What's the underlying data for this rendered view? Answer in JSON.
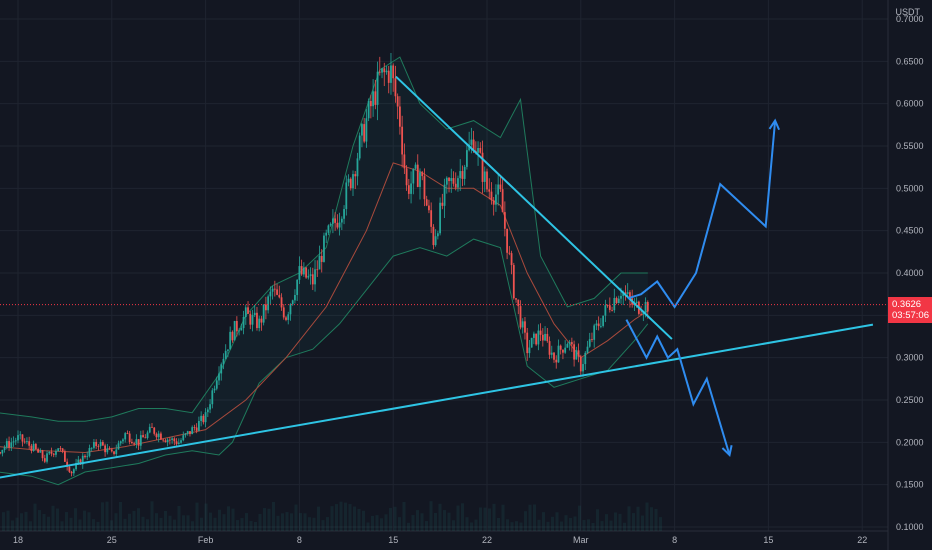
{
  "chart_data": {
    "type": "candlestick",
    "quote_currency": "USDT",
    "ylim": [
      0.1,
      0.7
    ],
    "y_ticks": [
      "0.1000",
      "0.1500",
      "0.2000",
      "0.2500",
      "0.3000",
      "0.3500",
      "0.4000",
      "0.4500",
      "0.5000",
      "0.5500",
      "0.6000",
      "0.6500",
      "0.7000"
    ],
    "x_ticks": [
      {
        "label": "18",
        "day": 0
      },
      {
        "label": "25",
        "day": 7
      },
      {
        "label": "Feb",
        "day": 14
      },
      {
        "label": "8",
        "day": 21
      },
      {
        "label": "15",
        "day": 28
      },
      {
        "label": "22",
        "day": 35
      },
      {
        "label": "Mar",
        "day": 42
      },
      {
        "label": "8",
        "day": 49
      },
      {
        "label": "15",
        "day": 56
      },
      {
        "label": "22",
        "day": 63
      }
    ],
    "current_price": {
      "value": 0.3626,
      "label": "0.3626",
      "countdown": "03:57:06"
    },
    "close_path": [
      [
        -1.5,
        0.19
      ],
      [
        0,
        0.205
      ],
      [
        1,
        0.195
      ],
      [
        2,
        0.18
      ],
      [
        3,
        0.195
      ],
      [
        4,
        0.165
      ],
      [
        5,
        0.185
      ],
      [
        6,
        0.2
      ],
      [
        7,
        0.185
      ],
      [
        8,
        0.21
      ],
      [
        9,
        0.2
      ],
      [
        10,
        0.215
      ],
      [
        11,
        0.205
      ],
      [
        12,
        0.2
      ],
      [
        13,
        0.215
      ],
      [
        14,
        0.23
      ],
      [
        15,
        0.29
      ],
      [
        16,
        0.33
      ],
      [
        17,
        0.35
      ],
      [
        18,
        0.34
      ],
      [
        19,
        0.38
      ],
      [
        20,
        0.35
      ],
      [
        21,
        0.4
      ],
      [
        22,
        0.39
      ],
      [
        23,
        0.44
      ],
      [
        24,
        0.47
      ],
      [
        25,
        0.52
      ],
      [
        26,
        0.58
      ],
      [
        27,
        0.63
      ],
      [
        27.8,
        0.64
      ],
      [
        28.5,
        0.58
      ],
      [
        29,
        0.5
      ],
      [
        30,
        0.52
      ],
      [
        31,
        0.44
      ],
      [
        32,
        0.5
      ],
      [
        33,
        0.52
      ],
      [
        34,
        0.56
      ],
      [
        35,
        0.5
      ],
      [
        36,
        0.49
      ],
      [
        37,
        0.38
      ],
      [
        38,
        0.31
      ],
      [
        39,
        0.33
      ],
      [
        40,
        0.3
      ],
      [
        41,
        0.32
      ],
      [
        42,
        0.29
      ],
      [
        43,
        0.33
      ],
      [
        44,
        0.36
      ],
      [
        45,
        0.38
      ],
      [
        46,
        0.36
      ],
      [
        47,
        0.3626
      ]
    ],
    "indicators": {
      "bollinger_upper": [
        [
          -1.5,
          0.235
        ],
        [
          1,
          0.23
        ],
        [
          3,
          0.225
        ],
        [
          5,
          0.225
        ],
        [
          7,
          0.23
        ],
        [
          9,
          0.24
        ],
        [
          11,
          0.24
        ],
        [
          13,
          0.235
        ],
        [
          15,
          0.28
        ],
        [
          17,
          0.35
        ],
        [
          19,
          0.385
        ],
        [
          21,
          0.4
        ],
        [
          23,
          0.43
        ],
        [
          25,
          0.55
        ],
        [
          27,
          0.64
        ],
        [
          28.5,
          0.655
        ],
        [
          30,
          0.6
        ],
        [
          32,
          0.57
        ],
        [
          34,
          0.58
        ],
        [
          36,
          0.56
        ],
        [
          37.5,
          0.605
        ],
        [
          39,
          0.42
        ],
        [
          41,
          0.36
        ],
        [
          43,
          0.37
        ],
        [
          45,
          0.4
        ],
        [
          47,
          0.4
        ]
      ],
      "bollinger_lower": [
        [
          -1.5,
          0.165
        ],
        [
          1,
          0.16
        ],
        [
          3,
          0.15
        ],
        [
          5,
          0.165
        ],
        [
          7,
          0.17
        ],
        [
          9,
          0.175
        ],
        [
          11,
          0.185
        ],
        [
          13,
          0.19
        ],
        [
          15,
          0.185
        ],
        [
          16,
          0.2
        ],
        [
          18,
          0.27
        ],
        [
          20,
          0.3
        ],
        [
          22,
          0.31
        ],
        [
          24,
          0.34
        ],
        [
          26,
          0.38
        ],
        [
          28,
          0.42
        ],
        [
          30,
          0.43
        ],
        [
          32,
          0.42
        ],
        [
          34,
          0.44
        ],
        [
          36,
          0.43
        ],
        [
          38,
          0.29
        ],
        [
          40,
          0.265
        ],
        [
          42,
          0.275
        ],
        [
          44,
          0.285
        ],
        [
          46,
          0.32
        ],
        [
          47,
          0.34
        ]
      ],
      "moving_average": [
        [
          -1.5,
          0.195
        ],
        [
          2,
          0.19
        ],
        [
          5,
          0.188
        ],
        [
          8,
          0.195
        ],
        [
          11,
          0.205
        ],
        [
          14,
          0.215
        ],
        [
          17,
          0.25
        ],
        [
          20,
          0.3
        ],
        [
          23,
          0.36
        ],
        [
          26,
          0.45
        ],
        [
          28,
          0.53
        ],
        [
          30,
          0.52
        ],
        [
          32,
          0.5
        ],
        [
          34,
          0.5
        ],
        [
          36,
          0.48
        ],
        [
          38,
          0.4
        ],
        [
          40,
          0.34
        ],
        [
          42,
          0.3
        ],
        [
          44,
          0.32
        ],
        [
          46,
          0.345
        ],
        [
          47,
          0.355
        ]
      ]
    },
    "trendlines": {
      "support": [
        [
          -1.5,
          0.158
        ],
        [
          63.8,
          0.339
        ]
      ],
      "resistance": [
        [
          28.2,
          0.632
        ],
        [
          48.8,
          0.322
        ]
      ]
    },
    "projections": {
      "bullish": [
        [
          45.5,
          0.37
        ],
        [
          46.5,
          0.375
        ],
        [
          47.7,
          0.39
        ],
        [
          49,
          0.36
        ],
        [
          50.6,
          0.4
        ],
        [
          52.4,
          0.505
        ],
        [
          55.8,
          0.455
        ],
        [
          56.5,
          0.58
        ]
      ],
      "bearish": [
        [
          45.4,
          0.345
        ],
        [
          46.9,
          0.3
        ],
        [
          47.7,
          0.325
        ],
        [
          48.5,
          0.3
        ],
        [
          49.2,
          0.31
        ],
        [
          50.4,
          0.245
        ],
        [
          51.4,
          0.275
        ],
        [
          53.1,
          0.185
        ]
      ]
    },
    "colors": {
      "background": "#131722",
      "grid": "#1f2430",
      "up": "#26a69a",
      "down": "#ef5350",
      "bands": "#1f7a5c",
      "trendline": "#2ec4e4",
      "projection": "#2f8cf0",
      "price_line": "#f23645"
    }
  }
}
